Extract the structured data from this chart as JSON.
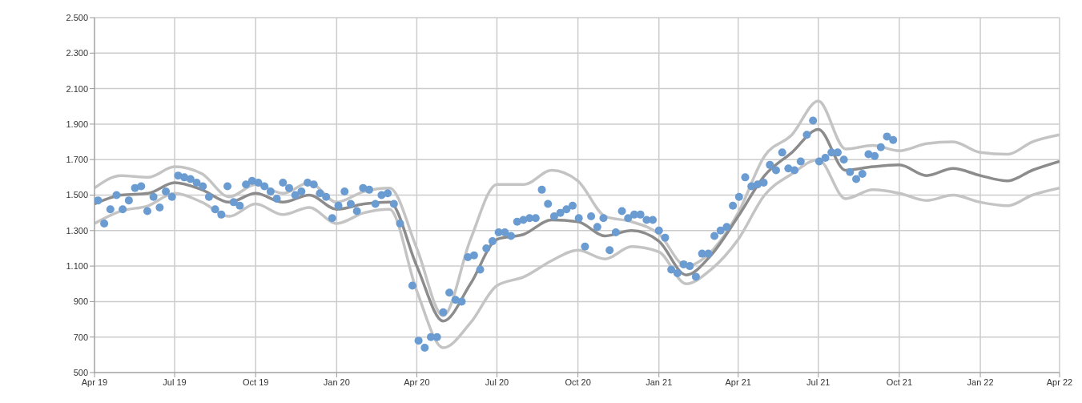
{
  "chart_data": {
    "type": "line",
    "grid": true,
    "legend": false,
    "xlim": [
      "2019-04",
      "2022-04"
    ],
    "xticks": [
      {
        "value": "2019-04",
        "label": "Apr 19"
      },
      {
        "value": "2019-07",
        "label": "Jul 19"
      },
      {
        "value": "2019-10",
        "label": "Oct 19"
      },
      {
        "value": "2020-01",
        "label": "Jan 20"
      },
      {
        "value": "2020-04",
        "label": "Apr 20"
      },
      {
        "value": "2020-07",
        "label": "Jul 20"
      },
      {
        "value": "2020-10",
        "label": "Oct 20"
      },
      {
        "value": "2021-01",
        "label": "Jan 21"
      },
      {
        "value": "2021-04",
        "label": "Apr 21"
      },
      {
        "value": "2021-07",
        "label": "Jul 21"
      },
      {
        "value": "2021-10",
        "label": "Oct 21"
      },
      {
        "value": "2022-01",
        "label": "Jan 22"
      },
      {
        "value": "2022-04",
        "label": "Apr 22"
      }
    ],
    "ylim": [
      500,
      2500
    ],
    "yticks": [
      {
        "value": 500,
        "label": "500"
      },
      {
        "value": 700,
        "label": "700"
      },
      {
        "value": 900,
        "label": "900"
      },
      {
        "value": 1100,
        "label": "1.100"
      },
      {
        "value": 1300,
        "label": "1.300"
      },
      {
        "value": 1500,
        "label": "1.500"
      },
      {
        "value": 1700,
        "label": "1.700"
      },
      {
        "value": 1900,
        "label": "1.900"
      },
      {
        "value": 2100,
        "label": "2.100"
      },
      {
        "value": 2300,
        "label": "2.300"
      },
      {
        "value": 2500,
        "label": "2.500"
      }
    ],
    "series": [
      {
        "type": "line",
        "color": "#c4c4c4",
        "x": [
          "2019-04",
          "2019-05",
          "2019-06",
          "2019-07",
          "2019-08",
          "2019-09",
          "2019-10",
          "2019-11",
          "2019-12",
          "2020-01",
          "2020-02",
          "2020-03",
          "2020-04",
          "2020-05",
          "2020-06",
          "2020-07",
          "2020-08",
          "2020-09",
          "2020-10",
          "2020-11",
          "2020-12",
          "2021-01",
          "2021-02",
          "2021-03",
          "2021-04",
          "2021-05",
          "2021-06",
          "2021-07",
          "2021-08",
          "2021-09",
          "2021-10",
          "2021-11",
          "2021-12",
          "2022-01",
          "2022-02",
          "2022-03",
          "2022-04"
        ],
        "values": [
          1540,
          1610,
          1600,
          1660,
          1620,
          1490,
          1560,
          1510,
          1570,
          1460,
          1520,
          1540,
          1200,
          820,
          1250,
          1560,
          1560,
          1640,
          1580,
          1380,
          1350,
          1280,
          1100,
          1180,
          1400,
          1720,
          1840,
          2030,
          1760,
          1780,
          1750,
          1790,
          1800,
          1740,
          1730,
          1800,
          1840
        ]
      },
      {
        "type": "line",
        "color": "#c4c4c4",
        "x": [
          "2019-04",
          "2019-05",
          "2019-06",
          "2019-07",
          "2019-08",
          "2019-09",
          "2019-10",
          "2019-11",
          "2019-12",
          "2020-01",
          "2020-02",
          "2020-03",
          "2020-04",
          "2020-05",
          "2020-06",
          "2020-07",
          "2020-08",
          "2020-09",
          "2020-10",
          "2020-11",
          "2020-12",
          "2021-01",
          "2021-02",
          "2021-03",
          "2021-04",
          "2021-05",
          "2021-06",
          "2021-07",
          "2021-08",
          "2021-09",
          "2021-10",
          "2021-11",
          "2021-12",
          "2022-01",
          "2022-02",
          "2022-03",
          "2022-04"
        ],
        "values": [
          1340,
          1410,
          1440,
          1510,
          1460,
          1380,
          1450,
          1390,
          1430,
          1340,
          1400,
          1420,
          960,
          640,
          780,
          990,
          1040,
          1130,
          1190,
          1140,
          1210,
          1180,
          1000,
          1080,
          1250,
          1500,
          1620,
          1700,
          1480,
          1530,
          1510,
          1470,
          1500,
          1460,
          1440,
          1500,
          1540
        ]
      },
      {
        "type": "line",
        "color": "#8c8c8c",
        "x": [
          "2019-04",
          "2019-05",
          "2019-06",
          "2019-07",
          "2019-08",
          "2019-09",
          "2019-10",
          "2019-11",
          "2019-12",
          "2020-01",
          "2020-02",
          "2020-03",
          "2020-04",
          "2020-05",
          "2020-06",
          "2020-07",
          "2020-08",
          "2020-09",
          "2020-10",
          "2020-11",
          "2020-12",
          "2021-01",
          "2021-02",
          "2021-03",
          "2021-04",
          "2021-05",
          "2021-06",
          "2021-07",
          "2021-08",
          "2021-09",
          "2021-10",
          "2021-11",
          "2021-12",
          "2022-01",
          "2022-02",
          "2022-03",
          "2022-04"
        ],
        "values": [
          1450,
          1500,
          1510,
          1570,
          1530,
          1460,
          1510,
          1460,
          1500,
          1420,
          1450,
          1460,
          1100,
          790,
          1000,
          1250,
          1280,
          1360,
          1350,
          1270,
          1300,
          1240,
          1050,
          1160,
          1380,
          1610,
          1740,
          1870,
          1640,
          1660,
          1670,
          1610,
          1650,
          1610,
          1580,
          1640,
          1690
        ]
      },
      {
        "type": "scatter",
        "color": "#6a9bd1",
        "marker": "circle",
        "x": [
          "2019-04-05",
          "2019-04-12",
          "2019-04-19",
          "2019-04-26",
          "2019-05-03",
          "2019-05-10",
          "2019-05-17",
          "2019-05-24",
          "2019-05-31",
          "2019-06-07",
          "2019-06-14",
          "2019-06-21",
          "2019-06-28",
          "2019-07-05",
          "2019-07-12",
          "2019-07-19",
          "2019-07-26",
          "2019-08-02",
          "2019-08-09",
          "2019-08-16",
          "2019-08-23",
          "2019-08-30",
          "2019-09-06",
          "2019-09-13",
          "2019-09-20",
          "2019-09-27",
          "2019-10-04",
          "2019-10-11",
          "2019-10-18",
          "2019-10-25",
          "2019-11-01",
          "2019-11-08",
          "2019-11-15",
          "2019-11-22",
          "2019-11-29",
          "2019-12-06",
          "2019-12-13",
          "2019-12-20",
          "2019-12-27",
          "2020-01-03",
          "2020-01-10",
          "2020-01-17",
          "2020-01-24",
          "2020-01-31",
          "2020-02-07",
          "2020-02-14",
          "2020-02-21",
          "2020-02-28",
          "2020-03-06",
          "2020-03-13",
          "2020-03-27",
          "2020-04-03",
          "2020-04-10",
          "2020-04-17",
          "2020-04-24",
          "2020-05-01",
          "2020-05-08",
          "2020-05-15",
          "2020-05-22",
          "2020-05-29",
          "2020-06-05",
          "2020-06-12",
          "2020-06-19",
          "2020-06-26",
          "2020-07-03",
          "2020-07-10",
          "2020-07-17",
          "2020-07-24",
          "2020-07-31",
          "2020-08-07",
          "2020-08-14",
          "2020-08-21",
          "2020-08-28",
          "2020-09-04",
          "2020-09-11",
          "2020-09-18",
          "2020-09-25",
          "2020-10-02",
          "2020-10-09",
          "2020-10-16",
          "2020-10-23",
          "2020-10-30",
          "2020-11-06",
          "2020-11-13",
          "2020-11-20",
          "2020-11-27",
          "2020-12-04",
          "2020-12-11",
          "2020-12-18",
          "2020-12-25",
          "2021-01-01",
          "2021-01-08",
          "2021-01-15",
          "2021-01-22",
          "2021-01-29",
          "2021-02-05",
          "2021-02-12",
          "2021-02-19",
          "2021-02-26",
          "2021-03-05",
          "2021-03-12",
          "2021-03-19",
          "2021-03-26",
          "2021-04-02",
          "2021-04-09",
          "2021-04-16",
          "2021-04-23",
          "2021-04-30",
          "2021-05-07",
          "2021-05-14",
          "2021-05-21",
          "2021-05-28",
          "2021-06-04",
          "2021-06-11",
          "2021-06-18",
          "2021-06-25",
          "2021-07-02",
          "2021-07-09",
          "2021-07-16",
          "2021-07-23",
          "2021-07-30",
          "2021-08-06",
          "2021-08-13",
          "2021-08-20",
          "2021-08-27",
          "2021-09-03",
          "2021-09-10",
          "2021-09-17",
          "2021-09-24"
        ],
        "values": [
          1470,
          1340,
          1420,
          1500,
          1420,
          1470,
          1540,
          1550,
          1410,
          1490,
          1430,
          1520,
          1490,
          1610,
          1600,
          1590,
          1570,
          1550,
          1490,
          1420,
          1390,
          1550,
          1460,
          1440,
          1560,
          1580,
          1570,
          1550,
          1520,
          1480,
          1570,
          1540,
          1500,
          1520,
          1570,
          1560,
          1510,
          1490,
          1370,
          1440,
          1520,
          1450,
          1410,
          1540,
          1530,
          1450,
          1500,
          1510,
          1450,
          1340,
          990,
          680,
          640,
          700,
          700,
          840,
          950,
          910,
          900,
          1150,
          1160,
          1080,
          1200,
          1240,
          1290,
          1290,
          1270,
          1350,
          1360,
          1370,
          1370,
          1530,
          1450,
          1380,
          1400,
          1420,
          1440,
          1370,
          1210,
          1380,
          1320,
          1370,
          1190,
          1290,
          1410,
          1370,
          1390,
          1390,
          1360,
          1360,
          1300,
          1260,
          1080,
          1060,
          1110,
          1100,
          1040,
          1170,
          1170,
          1270,
          1300,
          1320,
          1440,
          1490,
          1600,
          1550,
          1560,
          1570,
          1670,
          1640,
          1740,
          1650,
          1640,
          1690,
          1840,
          1920,
          1690,
          1710,
          1740,
          1740,
          1700,
          1630,
          1590,
          1620,
          1730,
          1720,
          1770,
          1830,
          1810
        ]
      }
    ]
  }
}
